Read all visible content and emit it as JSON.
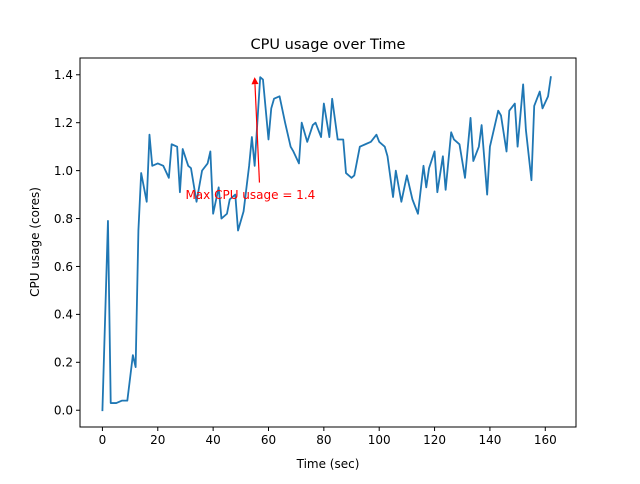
{
  "chart_data": {
    "type": "line",
    "title": "CPU usage over Time",
    "xlabel": "Time (sec)",
    "ylabel": "CPU usage (cores)",
    "xlim": [
      -8.1,
      171.1
    ],
    "ylim": [
      -0.07,
      1.47
    ],
    "xticks": [
      0,
      20,
      40,
      60,
      80,
      100,
      120,
      140,
      160
    ],
    "xtick_labels": [
      "0",
      "20",
      "40",
      "60",
      "80",
      "100",
      "120",
      "140",
      "160"
    ],
    "yticks": [
      0.0,
      0.2,
      0.4,
      0.6,
      0.8,
      1.0,
      1.2,
      1.4
    ],
    "ytick_labels": [
      "0.0",
      "0.2",
      "0.4",
      "0.6",
      "0.8",
      "1.0",
      "1.2",
      "1.4"
    ],
    "grid": false,
    "series": [
      {
        "color": "#1f77b4",
        "x": [
          0,
          2,
          3,
          5,
          7,
          9,
          11,
          12,
          13,
          14,
          16,
          17,
          18,
          20,
          22,
          24,
          25,
          27,
          28,
          29,
          31,
          32,
          34,
          36,
          38,
          39,
          40,
          42,
          43,
          45,
          46,
          48,
          49,
          51,
          53,
          54,
          55,
          57,
          58,
          60,
          61,
          62,
          64,
          66,
          68,
          69,
          71,
          72,
          74,
          76,
          77,
          79,
          80,
          82,
          83,
          85,
          87,
          88,
          90,
          91,
          93,
          95,
          97,
          99,
          100,
          102,
          103,
          105,
          106,
          108,
          110,
          112,
          114,
          116,
          117,
          118,
          120,
          121,
          123,
          124,
          126,
          127,
          129,
          131,
          133,
          134,
          136,
          137,
          139,
          140,
          141,
          143,
          144,
          146,
          147,
          149,
          150,
          152,
          153,
          155,
          156,
          158,
          159,
          161,
          162
        ],
        "y": [
          0.0,
          0.79,
          0.03,
          0.03,
          0.04,
          0.04,
          0.23,
          0.18,
          0.75,
          0.99,
          0.87,
          1.15,
          1.02,
          1.03,
          1.02,
          0.97,
          1.11,
          1.1,
          0.91,
          1.09,
          1.02,
          1.01,
          0.87,
          1.0,
          1.03,
          1.08,
          0.82,
          0.93,
          0.8,
          0.82,
          0.88,
          0.9,
          0.75,
          0.83,
          1.02,
          1.14,
          1.02,
          1.39,
          1.38,
          1.13,
          1.26,
          1.3,
          1.31,
          1.2,
          1.1,
          1.08,
          1.03,
          1.2,
          1.12,
          1.19,
          1.2,
          1.14,
          1.28,
          1.14,
          1.3,
          1.13,
          1.13,
          0.99,
          0.97,
          0.98,
          1.1,
          1.11,
          1.12,
          1.15,
          1.12,
          1.1,
          1.06,
          0.89,
          1.0,
          0.87,
          0.98,
          0.88,
          0.82,
          1.02,
          0.93,
          1.01,
          1.08,
          0.91,
          1.06,
          0.92,
          1.16,
          1.13,
          1.11,
          0.97,
          1.22,
          1.04,
          1.1,
          1.19,
          0.9,
          1.1,
          1.15,
          1.25,
          1.23,
          1.08,
          1.25,
          1.28,
          1.1,
          1.36,
          1.17,
          0.96,
          1.27,
          1.33,
          1.26,
          1.31,
          1.39
        ]
      }
    ],
    "annotation": {
      "text": "Max CPU usage = 1.4",
      "color": "#ff0000",
      "xy": [
        55,
        1.39
      ],
      "xytext": [
        30,
        0.9
      ]
    }
  }
}
